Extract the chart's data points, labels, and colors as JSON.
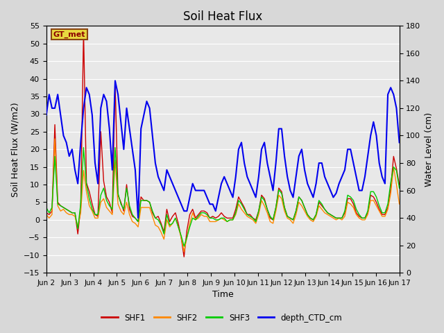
{
  "title": "Soil Heat Flux",
  "xlabel": "Time",
  "ylabel_left": "Soil Heat Flux (W/m2)",
  "ylabel_right": "Water Level (cm)",
  "ylim_left": [
    -15,
    55
  ],
  "ylim_right": [
    0,
    180
  ],
  "yticks_left": [
    -15,
    -10,
    -5,
    0,
    5,
    10,
    15,
    20,
    25,
    30,
    35,
    40,
    45,
    50,
    55
  ],
  "yticks_right": [
    0,
    20,
    40,
    60,
    80,
    100,
    120,
    140,
    160,
    180
  ],
  "xlim": [
    0,
    15
  ],
  "xtick_labels": [
    "Jun 2",
    "Jun 3",
    "Jun 4",
    "Jun 5",
    "Jun 6",
    "Jun 7",
    "Jun 8",
    "Jun 9",
    "Jun 10",
    "Jun 11",
    "Jun 12",
    "Jun 13",
    "Jun 14",
    "Jun 15",
    "Jun 16",
    "Jun 17"
  ],
  "xtick_positions": [
    0,
    1,
    2,
    3,
    4,
    5,
    6,
    7,
    8,
    9,
    10,
    11,
    12,
    13,
    14,
    15
  ],
  "annotation_text": "GT_met",
  "colors": {
    "SHF1": "#cc0000",
    "SHF2": "#ff8800",
    "SHF3": "#00cc00",
    "depth_CTD_cm": "#0000ee"
  },
  "bg_color": "#d8d8d8",
  "plot_bg_color": "#e8e8e8",
  "grid_color": "#ffffff",
  "SHF1": [
    2.0,
    1.5,
    2.5,
    27.0,
    5.0,
    4.0,
    3.5,
    3.0,
    2.5,
    2.0,
    2.0,
    -4.0,
    3.5,
    53.5,
    10.5,
    8.0,
    4.5,
    1.5,
    1.0,
    25.0,
    11.0,
    6.5,
    5.0,
    2.0,
    39.0,
    7.0,
    5.0,
    2.5,
    10.0,
    3.0,
    1.0,
    0.5,
    -0.5,
    6.5,
    5.5,
    5.5,
    5.0,
    2.0,
    0.5,
    1.0,
    -1.0,
    -3.5,
    3.0,
    -0.5,
    1.0,
    2.0,
    -1.0,
    -5.0,
    -10.5,
    -3.0,
    1.5,
    3.0,
    0.5,
    1.5,
    2.5,
    2.5,
    2.0,
    0.5,
    1.0,
    0.5,
    1.0,
    2.0,
    1.0,
    0.5,
    0.5,
    0.5,
    3.0,
    6.5,
    5.0,
    3.5,
    1.5,
    1.5,
    0.5,
    0.0,
    2.5,
    7.0,
    6.0,
    3.0,
    0.5,
    0.0,
    3.5,
    9.0,
    8.0,
    3.5,
    1.0,
    0.5,
    0.0,
    2.5,
    6.5,
    5.5,
    3.5,
    1.5,
    0.5,
    0.0,
    1.5,
    5.0,
    4.0,
    3.0,
    2.0,
    1.5,
    1.0,
    0.5,
    0.5,
    0.5,
    2.0,
    6.0,
    6.0,
    4.5,
    2.0,
    1.0,
    0.5,
    0.5,
    2.0,
    7.0,
    6.5,
    5.0,
    3.0,
    1.5,
    1.5,
    3.5,
    9.0,
    18.0,
    14.5,
    10.0
  ],
  "SHF2": [
    1.5,
    0.5,
    1.5,
    23.0,
    4.0,
    2.5,
    3.0,
    2.0,
    1.5,
    1.5,
    1.0,
    -2.0,
    2.0,
    14.0,
    8.0,
    4.0,
    2.5,
    0.5,
    0.5,
    5.0,
    6.0,
    3.5,
    2.5,
    1.5,
    17.0,
    4.5,
    2.5,
    1.5,
    5.0,
    1.5,
    -0.5,
    -1.0,
    -2.0,
    3.5,
    3.5,
    3.5,
    3.5,
    1.0,
    -1.5,
    -2.0,
    -3.5,
    -5.5,
    0.0,
    -2.0,
    -1.0,
    0.5,
    -2.0,
    -5.0,
    -9.0,
    -5.0,
    -1.0,
    2.0,
    0.0,
    0.5,
    1.5,
    1.0,
    1.0,
    -0.5,
    -0.5,
    -0.5,
    0.0,
    0.5,
    0.0,
    -0.5,
    0.0,
    0.0,
    1.5,
    4.5,
    3.0,
    2.0,
    1.0,
    0.5,
    0.0,
    -1.0,
    1.5,
    5.5,
    4.0,
    2.0,
    -0.5,
    -1.0,
    2.5,
    7.0,
    6.0,
    2.5,
    0.5,
    0.0,
    -1.0,
    1.5,
    5.0,
    4.0,
    2.5,
    1.0,
    0.0,
    -0.5,
    1.0,
    4.0,
    3.0,
    2.0,
    1.5,
    1.0,
    0.5,
    0.0,
    0.5,
    0.0,
    1.0,
    5.0,
    4.5,
    3.5,
    1.5,
    0.5,
    0.0,
    0.0,
    1.5,
    5.5,
    5.5,
    4.0,
    2.5,
    1.0,
    1.0,
    3.0,
    7.5,
    15.0,
    10.0,
    4.5
  ],
  "SHF3": [
    3.5,
    2.0,
    3.5,
    18.0,
    4.5,
    4.0,
    3.5,
    3.0,
    2.5,
    2.0,
    2.0,
    -2.5,
    4.5,
    20.5,
    10.0,
    6.0,
    3.0,
    1.5,
    1.5,
    7.0,
    9.0,
    5.5,
    4.0,
    3.0,
    20.5,
    7.5,
    4.5,
    3.0,
    9.0,
    4.0,
    1.5,
    0.5,
    -0.5,
    5.5,
    5.5,
    5.5,
    5.0,
    2.5,
    0.5,
    0.0,
    -1.5,
    -4.0,
    1.5,
    -1.5,
    -1.0,
    0.5,
    -2.0,
    -4.5,
    -7.5,
    -5.0,
    -2.0,
    0.5,
    0.0,
    1.0,
    2.0,
    2.0,
    1.5,
    0.5,
    0.5,
    0.0,
    0.0,
    0.5,
    0.5,
    -0.5,
    0.0,
    0.0,
    2.0,
    5.5,
    4.5,
    3.0,
    1.5,
    1.0,
    0.5,
    -0.5,
    2.5,
    6.5,
    5.5,
    3.0,
    1.0,
    0.0,
    3.5,
    8.5,
    7.5,
    3.5,
    1.0,
    0.5,
    0.0,
    2.5,
    6.5,
    5.5,
    3.5,
    1.5,
    0.5,
    0.0,
    1.5,
    5.5,
    4.5,
    3.0,
    2.0,
    1.5,
    1.0,
    0.5,
    0.5,
    0.5,
    2.5,
    7.0,
    6.5,
    5.5,
    3.0,
    1.5,
    0.5,
    0.5,
    2.5,
    8.0,
    8.0,
    6.5,
    4.0,
    2.0,
    2.0,
    4.5,
    10.5,
    15.0,
    14.0,
    9.0
  ],
  "depth_CTD_cm": [
    115,
    130,
    120,
    120,
    130,
    115,
    100,
    95,
    85,
    90,
    75,
    65,
    95,
    120,
    135,
    130,
    115,
    80,
    65,
    120,
    130,
    125,
    105,
    75,
    140,
    130,
    110,
    90,
    120,
    105,
    90,
    75,
    40,
    105,
    115,
    125,
    120,
    100,
    80,
    70,
    65,
    60,
    75,
    70,
    65,
    60,
    55,
    50,
    45,
    45,
    55,
    65,
    60,
    60,
    60,
    60,
    55,
    50,
    50,
    45,
    55,
    65,
    70,
    65,
    60,
    55,
    70,
    90,
    95,
    80,
    70,
    65,
    60,
    55,
    70,
    90,
    95,
    80,
    70,
    60,
    80,
    105,
    105,
    85,
    70,
    60,
    55,
    70,
    85,
    90,
    75,
    65,
    60,
    55,
    65,
    80,
    80,
    70,
    65,
    60,
    55,
    58,
    65,
    70,
    75,
    90,
    90,
    80,
    70,
    60,
    60,
    70,
    85,
    100,
    110,
    100,
    80,
    70,
    65,
    130,
    135,
    130,
    120,
    95
  ]
}
